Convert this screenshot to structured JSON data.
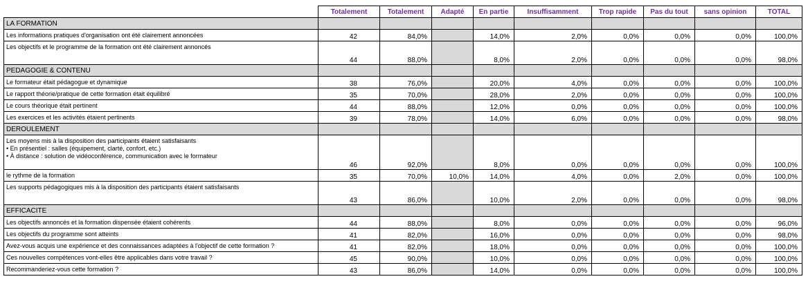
{
  "headers": [
    "Totalement",
    "Totalement",
    "Adapté",
    "En partie",
    "Insuffisamment",
    "Trop rapide",
    "Pas du tout",
    "sans opinion",
    "TOTAL"
  ],
  "sections": [
    {
      "title": "LA FORMATION",
      "rows": [
        {
          "label": "Les informations pratiques d'organisation ont été clairement annoncées",
          "count": "42",
          "pct": "84,0%",
          "adapte": "",
          "partie": "14,0%",
          "insuff": "2,0%",
          "rapide": "0,0%",
          "pasdutout": "0,0%",
          "sansop": "0,0%",
          "total": "100,0%"
        },
        {
          "label": "Les objectifs et le programme de la formation ont été clairement annoncés",
          "count": "44",
          "pct": "88,0%",
          "adapte": "",
          "partie": "8,0%",
          "insuff": "2,0%",
          "rapide": "0,0%",
          "pasdutout": "0,0%",
          "sansop": "0,0%",
          "total": "98,0%"
        }
      ]
    },
    {
      "title": "PEDAGOGIE  & CONTENU",
      "rows": [
        {
          "label": "Le formateur était pédagogue et dynamique",
          "count": "38",
          "pct": "76,0%",
          "adapte": "",
          "partie": "20,0%",
          "insuff": "4,0%",
          "rapide": "0,0%",
          "pasdutout": "0,0%",
          "sansop": "0,0%",
          "total": "100,0%"
        },
        {
          "label": "Le rapport théorie/pratique de cette formation était équilibré",
          "count": "35",
          "pct": "70,0%",
          "adapte": "",
          "partie": "28,0%",
          "insuff": "2,0%",
          "rapide": "0,0%",
          "pasdutout": "0,0%",
          "sansop": "0,0%",
          "total": "100,0%"
        },
        {
          "label": "Le cours théorique était pertinent",
          "count": "44",
          "pct": "88,0%",
          "adapte": "",
          "partie": "12,0%",
          "insuff": "0,0%",
          "rapide": "0,0%",
          "pasdutout": "0,0%",
          "sansop": "0,0%",
          "total": "100,0%"
        },
        {
          "label": "Les exercices et les activités étaient pertinents",
          "count": "39",
          "pct": "78,0%",
          "adapte": "",
          "partie": "14,0%",
          "insuff": "6,0%",
          "rapide": "0,0%",
          "pasdutout": "0,0%",
          "sansop": "0,0%",
          "total": "98,0%"
        }
      ]
    },
    {
      "title": "DEROULEMENT",
      "rows": [
        {
          "label": "Les moyens mis à la disposition des participants étaient satisfaisants\n• En présentiel : salles (équipement, clarté, confort, etc.)\n• À distance : solution de vidéoconférence, communication avec le formateur",
          "count": "46",
          "pct": "92,0%",
          "adapte": "",
          "partie": "8,0%",
          "insuff": "0,0%",
          "rapide": "0,0%",
          "pasdutout": "0,0%",
          "sansop": "0,0%",
          "total": "100,0%"
        },
        {
          "label": "le rythme de la formation",
          "count": "35",
          "pct": "70,0%",
          "adapte": "10,0%",
          "partie": "14,0%",
          "insuff": "4,0%",
          "rapide": "0,0%",
          "pasdutout": "2,0%",
          "sansop": "0,0%",
          "total": "100,0%"
        },
        {
          "label": "Les supports pédagogiques mis à la disposition des participants étaient satisfaisants",
          "count": "43",
          "pct": "86,0%",
          "adapte": "",
          "partie": "10,0%",
          "insuff": "2,0%",
          "rapide": "0,0%",
          "pasdutout": "0,0%",
          "sansop": "0,0%",
          "total": "98,0%"
        }
      ]
    },
    {
      "title": "EFFICACITE",
      "rows": [
        {
          "label": "Les objectifs annoncés et la formation dispensée étaient cohérents",
          "count": "44",
          "pct": "88,0%",
          "adapte": "",
          "partie": "8,0%",
          "insuff": "0,0%",
          "rapide": "0,0%",
          "pasdutout": "0,0%",
          "sansop": "0,0%",
          "total": "96,0%"
        },
        {
          "label": "Les objectifs du programme sont atteints",
          "count": "41",
          "pct": "82,0%",
          "adapte": "",
          "partie": "16,0%",
          "insuff": "0,0%",
          "rapide": "0,0%",
          "pasdutout": "0,0%",
          "sansop": "0,0%",
          "total": "98,0%"
        },
        {
          "label": "Avez-vous acquis une expérience et des connaissances adaptées à l'objectif de cette formation ?",
          "count": "41",
          "pct": "82,0%",
          "adapte": "",
          "partie": "18,0%",
          "insuff": "0,0%",
          "rapide": "0,0%",
          "pasdutout": "0,0%",
          "sansop": "0,0%",
          "total": "100,0%"
        },
        {
          "label": "Ces nouvelles compétences vont-elles être applicables dans votre travail ?",
          "count": "45",
          "pct": "90,0%",
          "adapte": "",
          "partie": "10,0%",
          "insuff": "0,0%",
          "rapide": "0,0%",
          "pasdutout": "0,0%",
          "sansop": "0,0%",
          "total": "100,0%"
        },
        {
          "label": "Recommanderiez-vous cette formation ?",
          "count": "43",
          "pct": "86,0%",
          "adapte": "",
          "partie": "14,0%",
          "insuff": "0,0%",
          "rapide": "0,0%",
          "pasdutout": "0,0%",
          "sansop": "0,0%",
          "total": "100,0%"
        }
      ]
    }
  ]
}
